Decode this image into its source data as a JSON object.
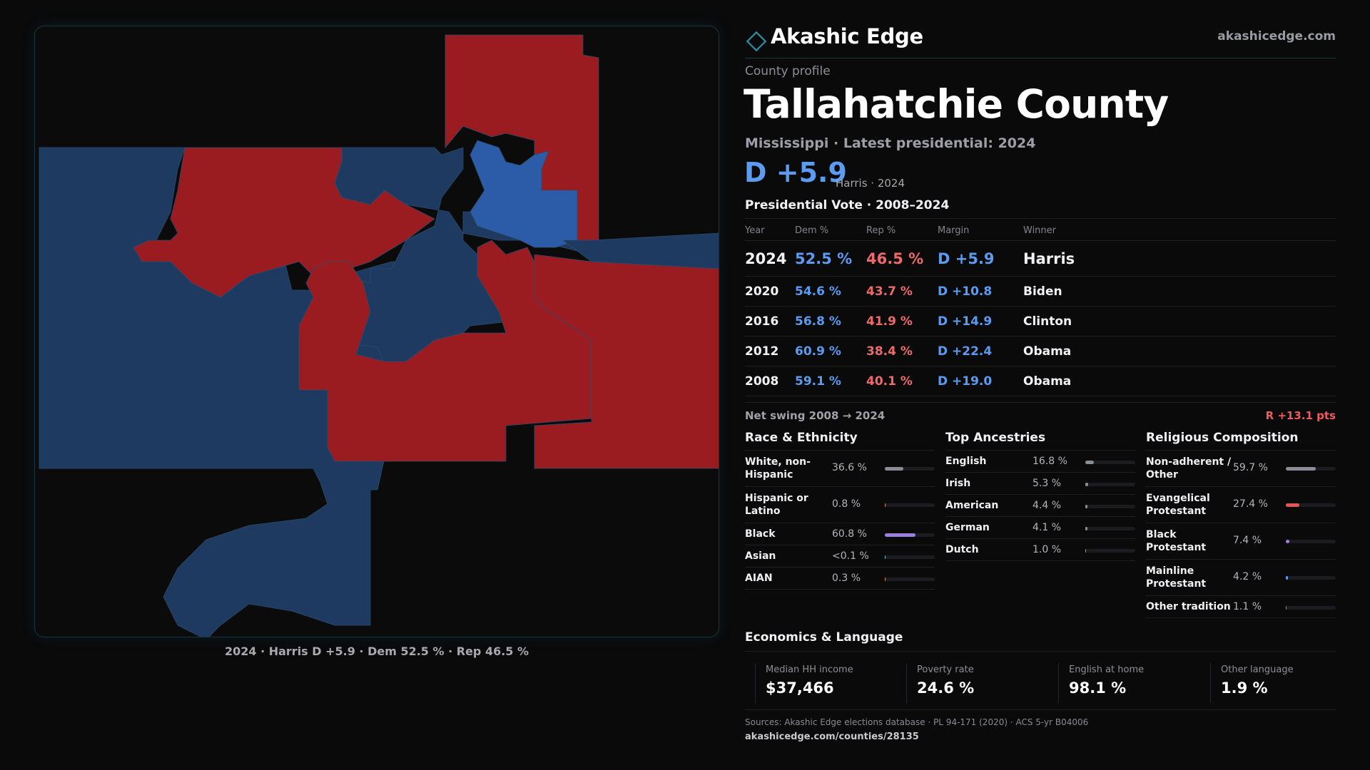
{
  "brand": {
    "name": "Akashic Edge",
    "url": "akashicedge.com"
  },
  "profile": {
    "kicker": "County profile",
    "title": "Tallahatchie County",
    "subtitle": "Mississippi · Latest presidential: 2024",
    "margin": "D +5.9",
    "margin_note": "Harris · 2024"
  },
  "map": {
    "caption": "2024 · Harris D +5.9 · Dem 52.5 % · Rep 46.5 %",
    "colors": {
      "dem": "#1f3a60",
      "dem_strong": "#2c5ca8",
      "rep": "#9a1c21",
      "border": "#2a4c6e"
    }
  },
  "vote": {
    "title": "Presidential Vote · 2008–2024",
    "headers": {
      "year": "Year",
      "dem": "Dem %",
      "rep": "Rep %",
      "margin": "Margin",
      "winner": "Winner"
    },
    "rows": [
      {
        "year": "2024",
        "dem": "52.5 %",
        "rep": "46.5 %",
        "margin": "D +5.9",
        "winner": "Harris"
      },
      {
        "year": "2020",
        "dem": "54.6 %",
        "rep": "43.7 %",
        "margin": "D +10.8",
        "winner": "Biden"
      },
      {
        "year": "2016",
        "dem": "56.8 %",
        "rep": "41.9 %",
        "margin": "D +14.9",
        "winner": "Clinton"
      },
      {
        "year": "2012",
        "dem": "60.9 %",
        "rep": "38.4 %",
        "margin": "D +22.4",
        "winner": "Obama"
      },
      {
        "year": "2008",
        "dem": "59.1 %",
        "rep": "40.1 %",
        "margin": "D +19.0",
        "winner": "Obama"
      }
    ],
    "swing_label": "Net swing 2008 → 2024",
    "swing_value": "R +13.1 pts"
  },
  "race": {
    "title": "Race & Ethnicity",
    "items": [
      {
        "label": "White, non-Hispanic",
        "value": "36.6 %",
        "pct": 36.6,
        "color": "#8a8d98"
      },
      {
        "label": "Hispanic or Latino",
        "value": "0.8 %",
        "pct": 0.8,
        "color": "#d9874a"
      },
      {
        "label": "Black",
        "value": "60.8 %",
        "pct": 60.8,
        "color": "#9a7fe0"
      },
      {
        "label": "Asian",
        "value": "<0.1 %",
        "pct": 0.05,
        "color": "#4fb0c6"
      },
      {
        "label": "AIAN",
        "value": "0.3 %",
        "pct": 0.3,
        "color": "#d9874a"
      }
    ]
  },
  "ancestry": {
    "title": "Top Ancestries",
    "items": [
      {
        "label": "English",
        "value": "16.8 %",
        "pct": 16.8,
        "color": "#8a8d98"
      },
      {
        "label": "Irish",
        "value": "5.3 %",
        "pct": 5.3,
        "color": "#8a8d98"
      },
      {
        "label": "American",
        "value": "4.4 %",
        "pct": 4.4,
        "color": "#8a8d98"
      },
      {
        "label": "German",
        "value": "4.1 %",
        "pct": 4.1,
        "color": "#8a8d98"
      },
      {
        "label": "Dutch",
        "value": "1.0 %",
        "pct": 1.0,
        "color": "#8a8d98"
      }
    ]
  },
  "religion": {
    "title": "Religious Composition",
    "items": [
      {
        "label": "Non-adherent / Other",
        "value": "59.7 %",
        "pct": 59.7,
        "color": "#8a8d98"
      },
      {
        "label": "Evangelical Protestant",
        "value": "27.4 %",
        "pct": 27.4,
        "color": "#e0575a"
      },
      {
        "label": "Black Protestant",
        "value": "7.4 %",
        "pct": 7.4,
        "color": "#9a7fe0"
      },
      {
        "label": "Mainline Protestant",
        "value": "4.2 %",
        "pct": 4.2,
        "color": "#5b9bf0"
      },
      {
        "label": "Other tradition",
        "value": "1.1 %",
        "pct": 1.1,
        "color": "#8a8d98"
      }
    ]
  },
  "economics": {
    "title": "Economics & Language",
    "cells": [
      {
        "label": "Median HH income",
        "value": "$37,466"
      },
      {
        "label": "Poverty rate",
        "value": "24.6 %"
      },
      {
        "label": "English at home",
        "value": "98.1 %"
      },
      {
        "label": "Other language",
        "value": "1.9 %"
      }
    ]
  },
  "sources": {
    "text": "Sources: Akashic Edge elections database · PL 94-171 (2020) · ACS 5-yr B04006",
    "url": "akashicedge.com/counties/28135"
  }
}
